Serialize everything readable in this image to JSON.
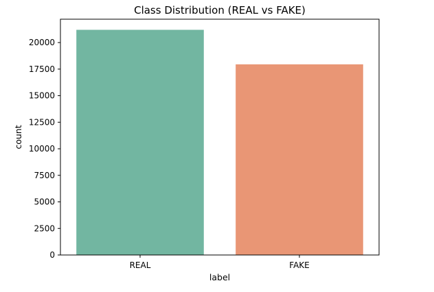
{
  "chart_data": {
    "type": "bar",
    "title": "Class Distribution (REAL vs FAKE)",
    "xlabel": "label",
    "ylabel": "count",
    "categories": [
      "REAL",
      "FAKE"
    ],
    "values": [
      21200,
      17950
    ],
    "colors": [
      "#72b6a1",
      "#e99675"
    ],
    "ylim": [
      0,
      22200
    ],
    "yticks": [
      0,
      2500,
      5000,
      7500,
      10000,
      12500,
      15000,
      17500,
      20000
    ],
    "ytick_labels": [
      "0",
      "2500",
      "5000",
      "7500",
      "10000",
      "12500",
      "15000",
      "17500",
      "20000"
    ],
    "grid": false,
    "legend": "none"
  }
}
